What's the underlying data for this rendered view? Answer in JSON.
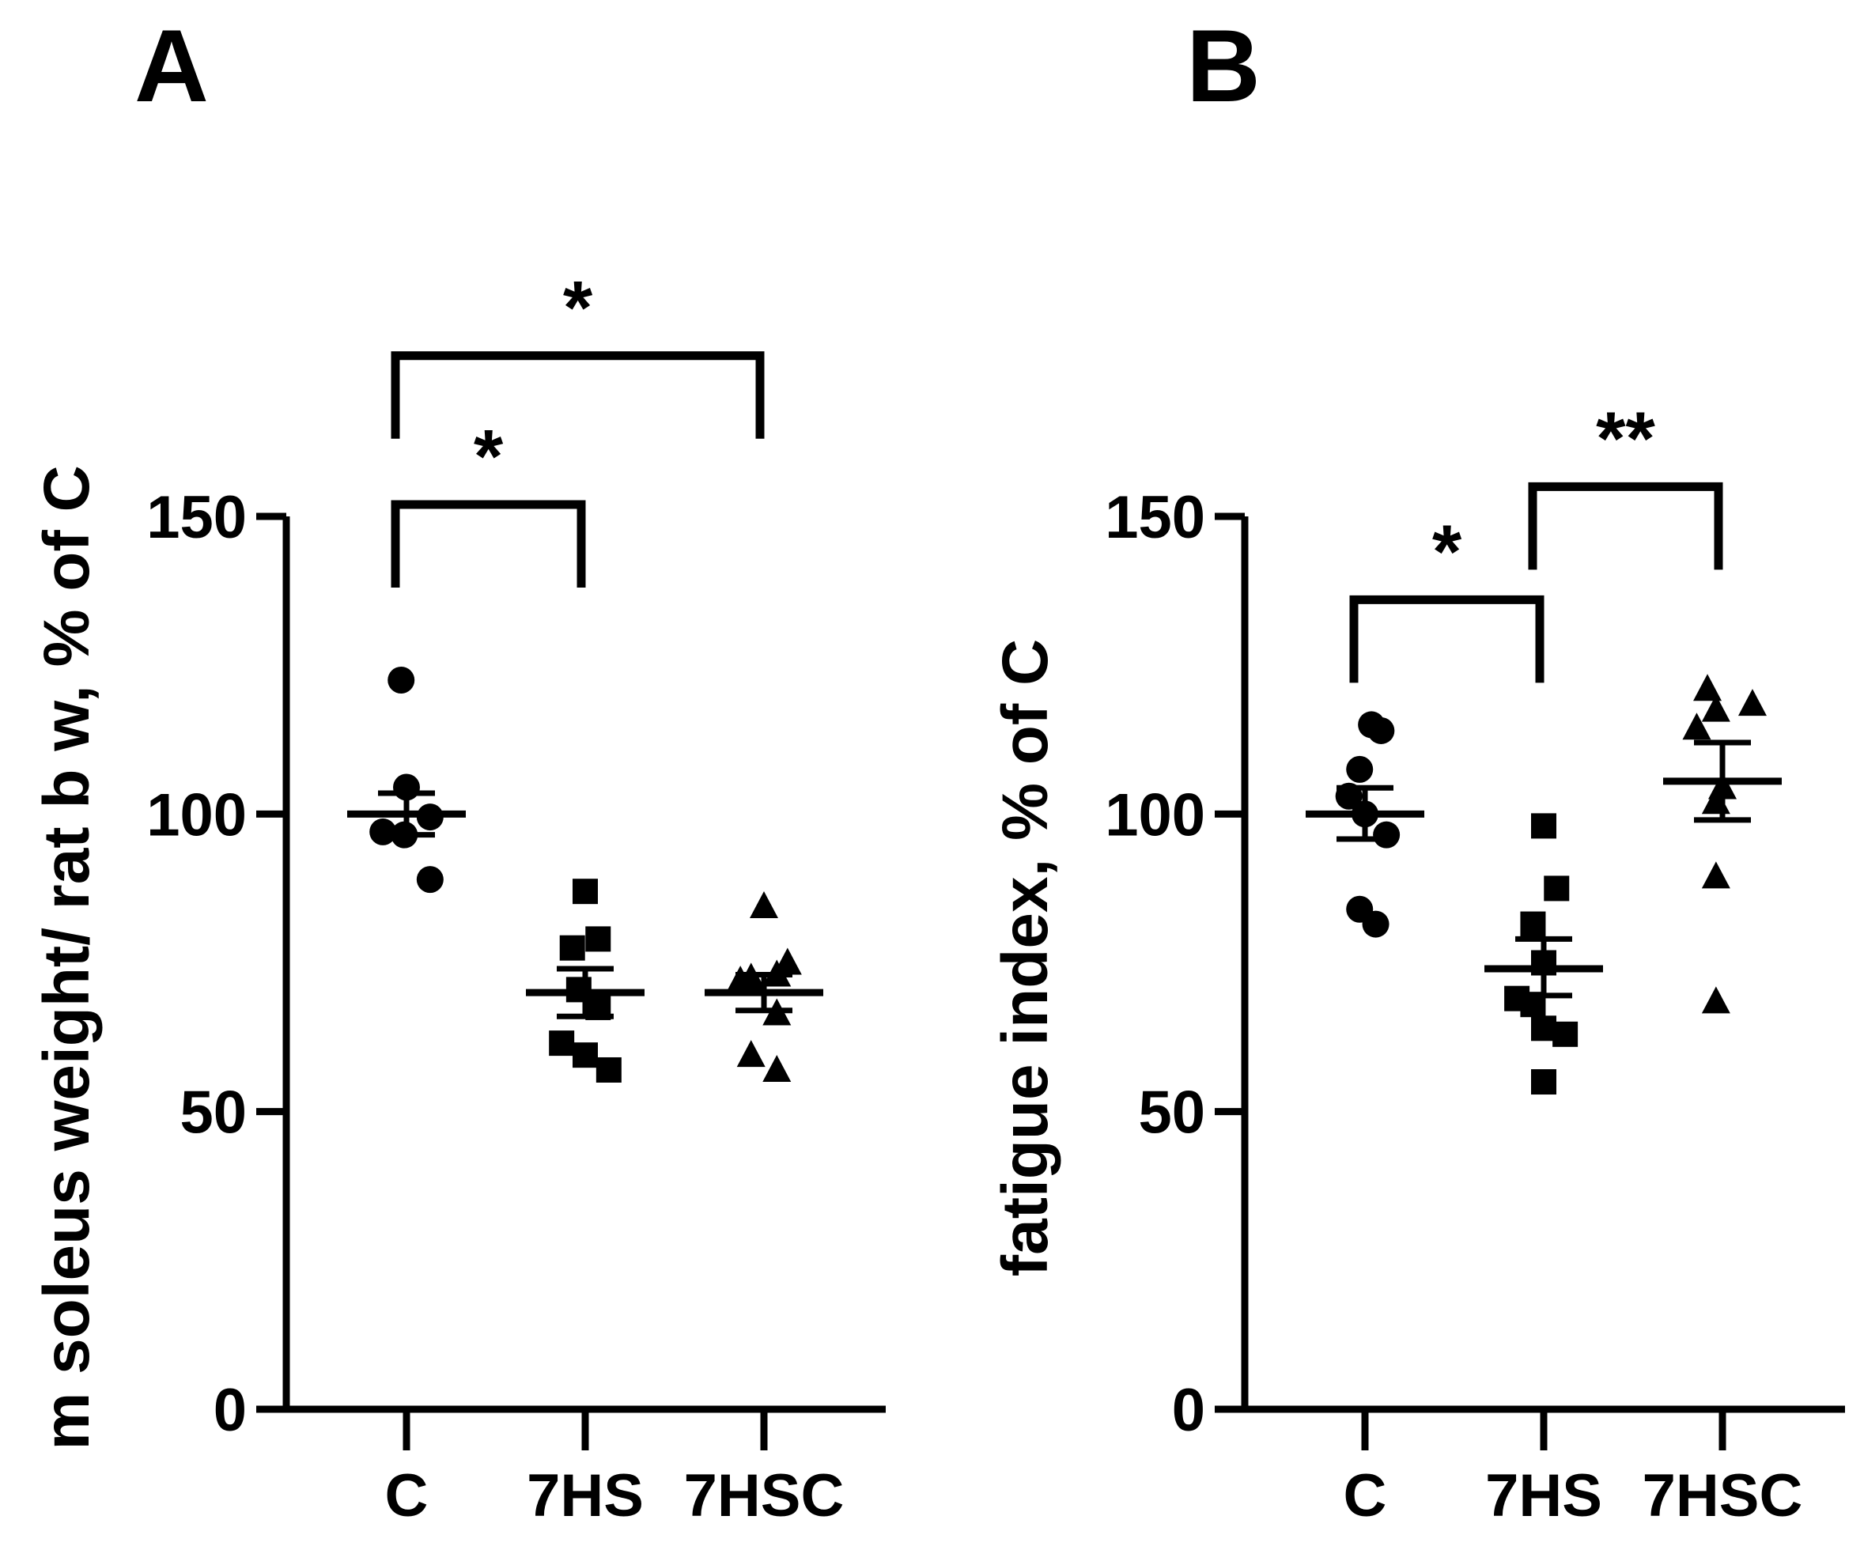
{
  "chart_data": [
    {
      "type": "scatter",
      "panel_label": "A",
      "title": "",
      "xlabel": "",
      "ylabel": "m soleus weight/ rat b w, % of C",
      "ylim": [
        0,
        150
      ],
      "yticks": [
        0,
        50,
        100,
        150
      ],
      "grid": false,
      "categories": [
        "C",
        "7HS",
        "7HSC"
      ],
      "marker_shapes": [
        "circle",
        "square",
        "triangle"
      ],
      "series": [
        {
          "name": "C",
          "shape": "circle",
          "points": [
            {
              "jitter": -0.05,
              "value": 122.5
            },
            {
              "jitter": 0.0,
              "value": 104.5
            },
            {
              "jitter": -0.22,
              "value": 97.0
            },
            {
              "jitter": -0.02,
              "value": 96.5
            },
            {
              "jitter": 0.22,
              "value": 99.5
            },
            {
              "jitter": 0.22,
              "value": 89.0
            }
          ],
          "mean": 100.0,
          "sem_low": 96.5,
          "sem_high": 103.5
        },
        {
          "name": "7HS",
          "shape": "square",
          "points": [
            {
              "jitter": 0.0,
              "value": 87.0
            },
            {
              "jitter": -0.12,
              "value": 77.5
            },
            {
              "jitter": 0.12,
              "value": 79.0
            },
            {
              "jitter": -0.06,
              "value": 70.5
            },
            {
              "jitter": 0.12,
              "value": 67.5
            },
            {
              "jitter": -0.22,
              "value": 61.5
            },
            {
              "jitter": 0.0,
              "value": 59.5
            },
            {
              "jitter": 0.22,
              "value": 57.0
            }
          ],
          "mean": 70.0,
          "sem_low": 66.0,
          "sem_high": 74.0
        },
        {
          "name": "7HSC",
          "shape": "triangle",
          "points": [
            {
              "jitter": 0.0,
              "value": 84.5
            },
            {
              "jitter": 0.22,
              "value": 75.0
            },
            {
              "jitter": -0.12,
              "value": 72.5
            },
            {
              "jitter": 0.12,
              "value": 73.0
            },
            {
              "jitter": -0.22,
              "value": 72.0
            },
            {
              "jitter": 0.12,
              "value": 66.5
            },
            {
              "jitter": -0.12,
              "value": 59.5
            },
            {
              "jitter": 0.12,
              "value": 57.0
            }
          ],
          "mean": 70.0,
          "sem_low": 67.0,
          "sem_high": 73.0
        }
      ],
      "significance": [
        {
          "from": "C",
          "to": "7HSC",
          "label": "*",
          "level": 177
        },
        {
          "from": "C",
          "to": "7HS",
          "label": "*",
          "level": 152
        }
      ]
    },
    {
      "type": "scatter",
      "panel_label": "B",
      "title": "",
      "xlabel": "",
      "ylabel": "fatigue index, % of C",
      "ylim": [
        0,
        150
      ],
      "yticks": [
        0,
        50,
        100,
        150
      ],
      "grid": false,
      "categories": [
        "C",
        "7HS",
        "7HSC"
      ],
      "marker_shapes": [
        "circle",
        "square",
        "triangle"
      ],
      "series": [
        {
          "name": "C",
          "shape": "circle",
          "points": [
            {
              "jitter": 0.06,
              "value": 115.0
            },
            {
              "jitter": 0.15,
              "value": 114.0
            },
            {
              "jitter": -0.05,
              "value": 107.5
            },
            {
              "jitter": -0.15,
              "value": 103.0
            },
            {
              "jitter": 0.0,
              "value": 100.0
            },
            {
              "jitter": 0.2,
              "value": 96.5
            },
            {
              "jitter": -0.05,
              "value": 84.0
            },
            {
              "jitter": 0.1,
              "value": 81.5
            }
          ],
          "mean": 100.0,
          "sem_low": 95.8,
          "sem_high": 104.4
        },
        {
          "name": "7HS",
          "shape": "square",
          "points": [
            {
              "jitter": 0.0,
              "value": 98.0
            },
            {
              "jitter": 0.12,
              "value": 87.5
            },
            {
              "jitter": -0.1,
              "value": 81.5
            },
            {
              "jitter": 0.0,
              "value": 75.0
            },
            {
              "jitter": -0.25,
              "value": 69.0
            },
            {
              "jitter": -0.1,
              "value": 68.0
            },
            {
              "jitter": 0.0,
              "value": 64.0
            },
            {
              "jitter": 0.2,
              "value": 63.0
            },
            {
              "jitter": 0.0,
              "value": 55.0
            }
          ],
          "mean": 74.0,
          "sem_low": 69.5,
          "sem_high": 79.0
        },
        {
          "name": "7HSC",
          "shape": "triangle",
          "points": [
            {
              "jitter": -0.14,
              "value": 121.0
            },
            {
              "jitter": 0.28,
              "value": 118.5
            },
            {
              "jitter": -0.06,
              "value": 117.5
            },
            {
              "jitter": -0.24,
              "value": 114.5
            },
            {
              "jitter": 0.0,
              "value": 104.5
            },
            {
              "jitter": -0.06,
              "value": 102.0
            },
            {
              "jitter": -0.06,
              "value": 89.5
            },
            {
              "jitter": -0.06,
              "value": 68.5
            }
          ],
          "mean": 105.5,
          "sem_low": 99.0,
          "sem_high": 112.0
        }
      ],
      "significance": [
        {
          "from": "C",
          "to": "7HS",
          "label": "*",
          "level": 136
        },
        {
          "from": "7HS",
          "to": "7HSC",
          "label": "**",
          "level": 155
        }
      ]
    }
  ]
}
